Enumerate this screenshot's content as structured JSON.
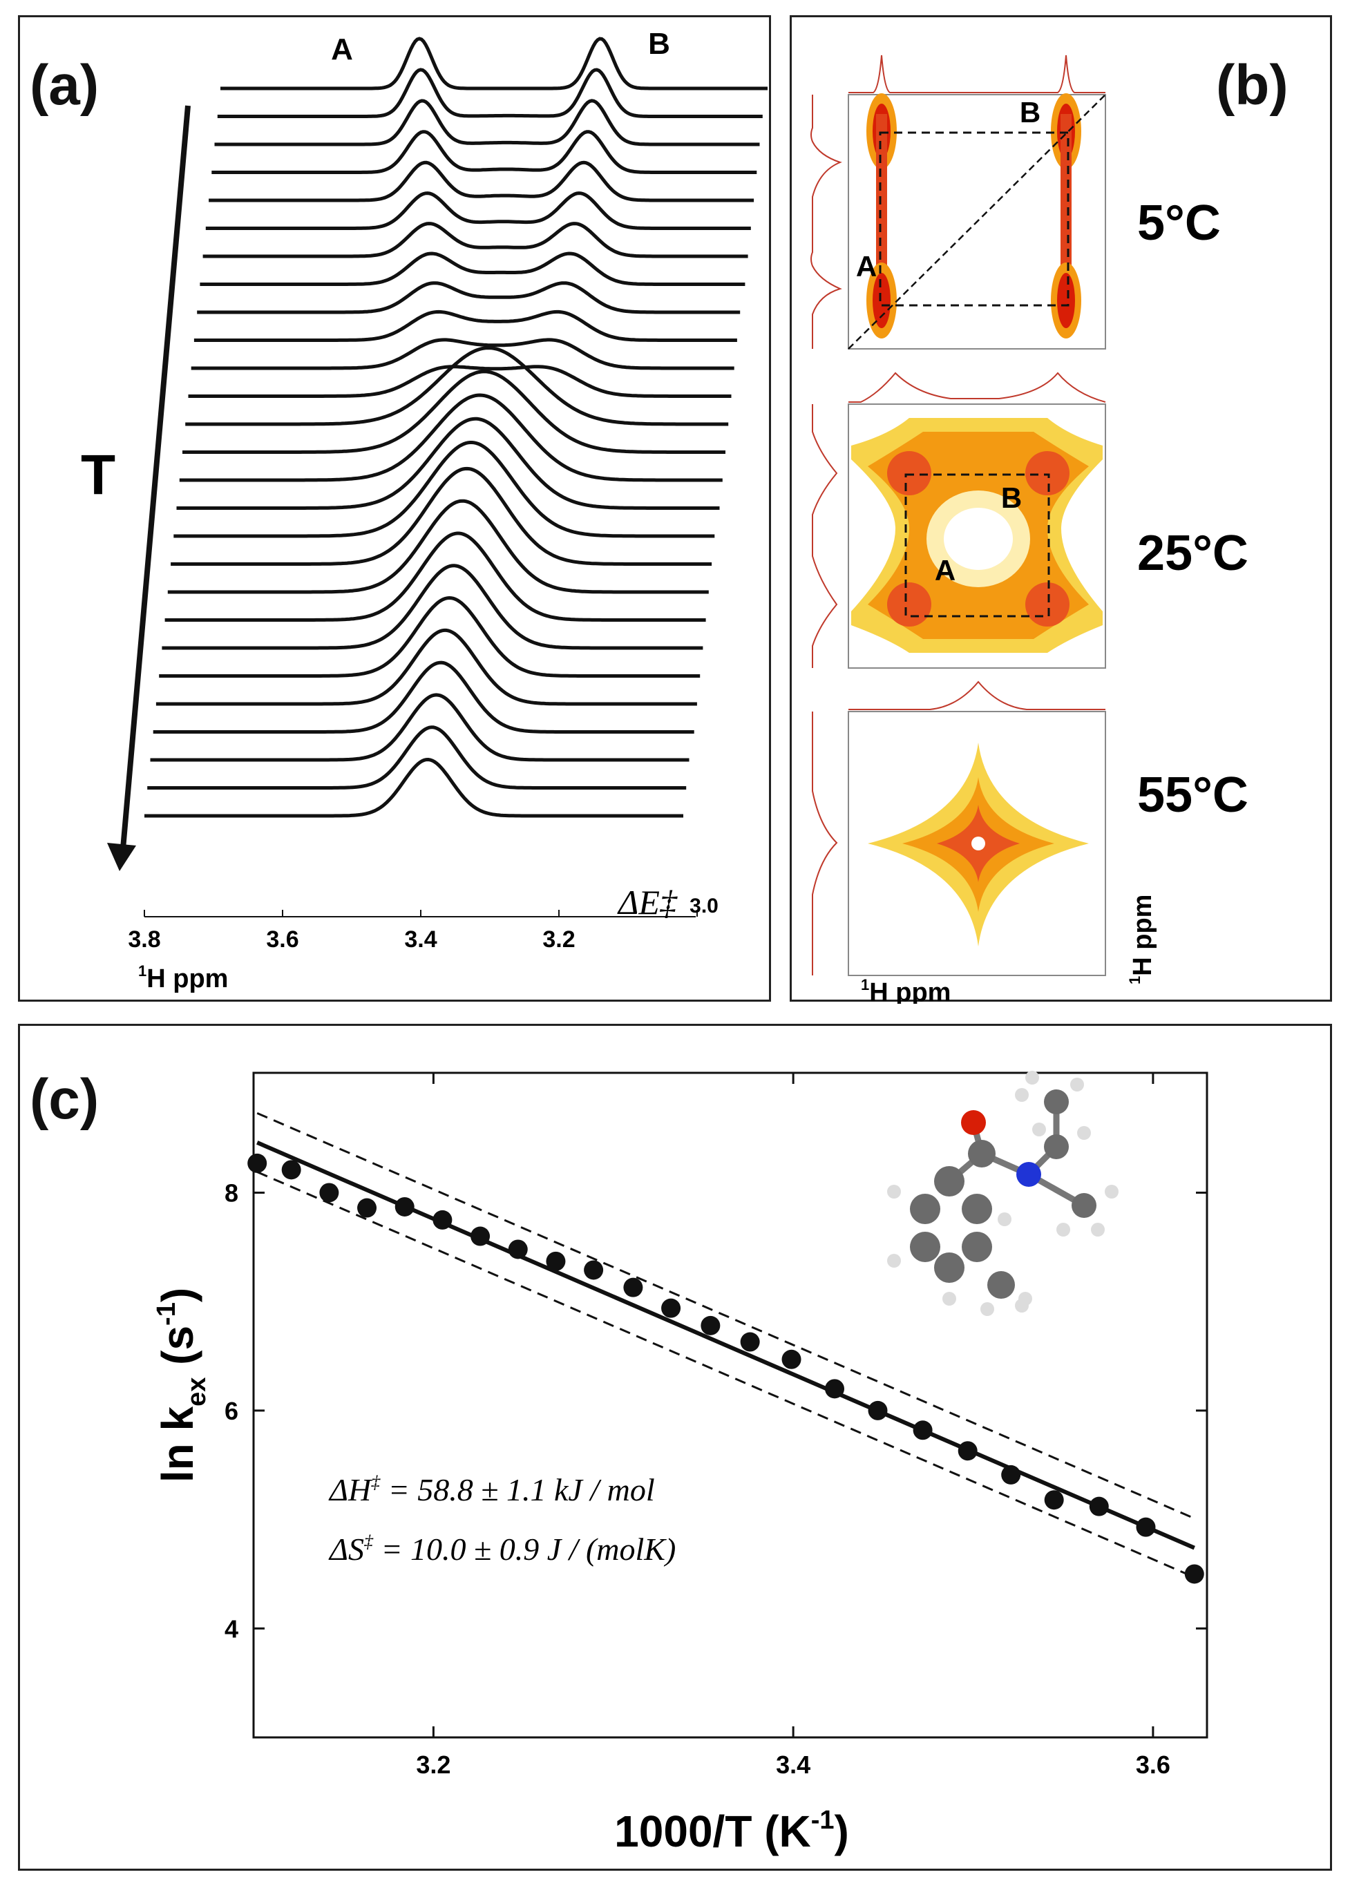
{
  "figure": {
    "panel_a_label": "(a)",
    "panel_b_label": "(b)",
    "panel_c_label": "(c)"
  },
  "colors": {
    "ink": "#111111",
    "red": "#d81e06",
    "orange": "#f39a12",
    "yellow": "#f7d34a",
    "trace": "#c0392b"
  },
  "panel_a": {
    "peak_a_label": "A",
    "peak_b_label": "B",
    "temperature_label": "T",
    "x_ticks": [
      "3.8",
      "3.6",
      "3.4",
      "3.2",
      "3.0"
    ],
    "x_tick_values": [
      3.8,
      3.6,
      3.4,
      3.2,
      3.0
    ],
    "overlay_text": "ΔE‡",
    "x_unit_sup": "1",
    "x_unit": "H ppm",
    "n_traces": 27
  },
  "panel_b": {
    "spectra": [
      {
        "temperature": "5°C",
        "peak_a": "A",
        "peak_b": "B"
      },
      {
        "temperature": "25°C",
        "peak_a": "A",
        "peak_b": "B"
      },
      {
        "temperature": "55°C",
        "peak_a": "",
        "peak_b": ""
      }
    ],
    "x_unit_sup": "1",
    "x_unit": "H ppm",
    "y_unit_sup": "1",
    "y_unit": "H ppm"
  },
  "chart_data": {
    "type": "scatter",
    "title": "",
    "xlabel": "1000/T (K-1)",
    "ylabel": "ln kex (s-1)",
    "xlim": [
      3.1,
      3.63
    ],
    "ylim": [
      3.0,
      9.1
    ],
    "x_ticks": [
      3.2,
      3.4,
      3.6
    ],
    "y_ticks": [
      4,
      6,
      8
    ],
    "x_tick_labels": [
      "3.2",
      "3.4",
      "3.6"
    ],
    "y_tick_labels": [
      "4",
      "6",
      "8"
    ],
    "x": [
      3.102,
      3.121,
      3.142,
      3.163,
      3.184,
      3.205,
      3.226,
      3.247,
      3.268,
      3.289,
      3.311,
      3.332,
      3.354,
      3.376,
      3.399,
      3.423,
      3.447,
      3.472,
      3.497,
      3.521,
      3.545,
      3.57,
      3.596,
      3.623
    ],
    "y": [
      8.27,
      8.21,
      8.0,
      7.86,
      7.87,
      7.75,
      7.6,
      7.48,
      7.37,
      7.29,
      7.13,
      6.94,
      6.78,
      6.63,
      6.47,
      6.2,
      6.0,
      5.82,
      5.63,
      5.41,
      5.18,
      5.12,
      4.93,
      4.5
    ],
    "fit_line": {
      "x": [
        3.102,
        3.623
      ],
      "y": [
        8.46,
        4.74
      ]
    },
    "confidence_upper": {
      "x": [
        3.102,
        3.623
      ],
      "y": [
        8.73,
        5.01
      ]
    },
    "confidence_lower": {
      "x": [
        3.102,
        3.623
      ],
      "y": [
        8.19,
        4.47
      ]
    },
    "annotations": {
      "dH_lhs": "ΔH",
      "dH_sup": "‡",
      "dH_rhs": " = 58.8 ± 1.1 kJ / mol",
      "dS_lhs": "ΔS",
      "dS_sup": "‡",
      "dS_rhs": " = 10.0 ± 0.9 J / (molK)"
    },
    "xlabel_main": "1000/T (K",
    "xlabel_sup": "-1",
    "xlabel_end": ")",
    "ylabel_main": "ln k",
    "ylabel_sub": "ex",
    "ylabel_paren": " (s",
    "ylabel_sup": "-1",
    "ylabel_end": ")"
  }
}
